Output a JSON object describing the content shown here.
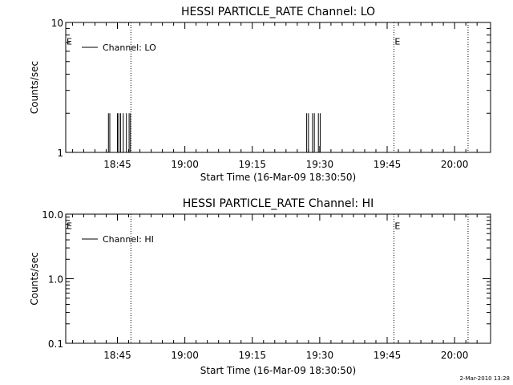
{
  "footer_timestamp": "2-Mar-2010 13:28",
  "chart_data": [
    {
      "type": "line",
      "title": "HESSI PARTICLE_RATE Channel: LO",
      "xlabel": "Start Time (16-Mar-09 18:30:50)",
      "ylabel": "Counts/sec",
      "yscale": "log",
      "ylim": [
        1,
        10
      ],
      "xlim_minutes_after_18_30": [
        3.5,
        98.0
      ],
      "ytick_labels": [
        {
          "value": 1,
          "label": "1"
        },
        {
          "value": 10,
          "label": "10"
        }
      ],
      "xtick_labels": [
        {
          "minutes_after_18_30": 15,
          "label": "18:45"
        },
        {
          "minutes_after_18_30": 30,
          "label": "19:00"
        },
        {
          "minutes_after_18_30": 45,
          "label": "19:15"
        },
        {
          "minutes_after_18_30": 60,
          "label": "19:30"
        },
        {
          "minutes_after_18_30": 75,
          "label": "19:45"
        },
        {
          "minutes_after_18_30": 90,
          "label": "20:00"
        }
      ],
      "series": [
        {
          "name": "Channel: LO",
          "color": "#000000",
          "spikes": [
            {
              "minutes_after_18_30": 13.0,
              "value": 2
            },
            {
              "minutes_after_18_30": 13.3,
              "value": 2
            },
            {
              "minutes_after_18_30": 15.0,
              "value": 2
            },
            {
              "minutes_after_18_30": 15.3,
              "value": 2
            },
            {
              "minutes_after_18_30": 15.7,
              "value": 2
            },
            {
              "minutes_after_18_30": 16.3,
              "value": 2
            },
            {
              "minutes_after_18_30": 17.0,
              "value": 2
            },
            {
              "minutes_after_18_30": 17.6,
              "value": 2
            },
            {
              "minutes_after_18_30": 17.9,
              "value": 2
            },
            {
              "minutes_after_18_30": 57.1,
              "value": 2
            },
            {
              "minutes_after_18_30": 57.5,
              "value": 2
            },
            {
              "minutes_after_18_30": 58.4,
              "value": 2
            },
            {
              "minutes_after_18_30": 58.8,
              "value": 2
            },
            {
              "minutes_after_18_30": 59.7,
              "value": 2
            },
            {
              "minutes_after_18_30": 60.1,
              "value": 2
            }
          ]
        }
      ],
      "vertical_markers_minutes_after_18_30": [
        18.0,
        76.5,
        93.0
      ],
      "annotations": [
        {
          "text": "E",
          "minutes_after_18_30": 3.5,
          "value": 7.8
        },
        {
          "text": "E",
          "minutes_after_18_30": 76.5,
          "value": 7.8
        }
      ],
      "legend": "top-left",
      "grid": false
    },
    {
      "type": "line",
      "title": "HESSI PARTICLE_RATE Channel: HI",
      "xlabel": "Start Time (16-Mar-09 18:30:50)",
      "ylabel": "Counts/sec",
      "yscale": "log",
      "ylim": [
        0.1,
        10
      ],
      "xlim_minutes_after_18_30": [
        3.5,
        98.0
      ],
      "ytick_labels": [
        {
          "value": 0.1,
          "label": "0.1"
        },
        {
          "value": 1,
          "label": "1.0"
        },
        {
          "value": 10,
          "label": "10.0"
        }
      ],
      "xtick_labels": [
        {
          "minutes_after_18_30": 15,
          "label": "18:45"
        },
        {
          "minutes_after_18_30": 30,
          "label": "19:00"
        },
        {
          "minutes_after_18_30": 45,
          "label": "19:15"
        },
        {
          "minutes_after_18_30": 60,
          "label": "19:30"
        },
        {
          "minutes_after_18_30": 75,
          "label": "19:45"
        },
        {
          "minutes_after_18_30": 90,
          "label": "20:00"
        }
      ],
      "series": [
        {
          "name": "Channel: HI",
          "color": "#000000",
          "spikes": []
        }
      ],
      "vertical_markers_minutes_after_18_30": [
        18.0,
        76.5,
        93.0
      ],
      "annotations": [
        {
          "text": "E",
          "minutes_after_18_30": 3.5,
          "value": 7.8
        },
        {
          "text": "E",
          "minutes_after_18_30": 76.5,
          "value": 7.8
        }
      ],
      "legend": "top-left",
      "grid": false
    }
  ]
}
